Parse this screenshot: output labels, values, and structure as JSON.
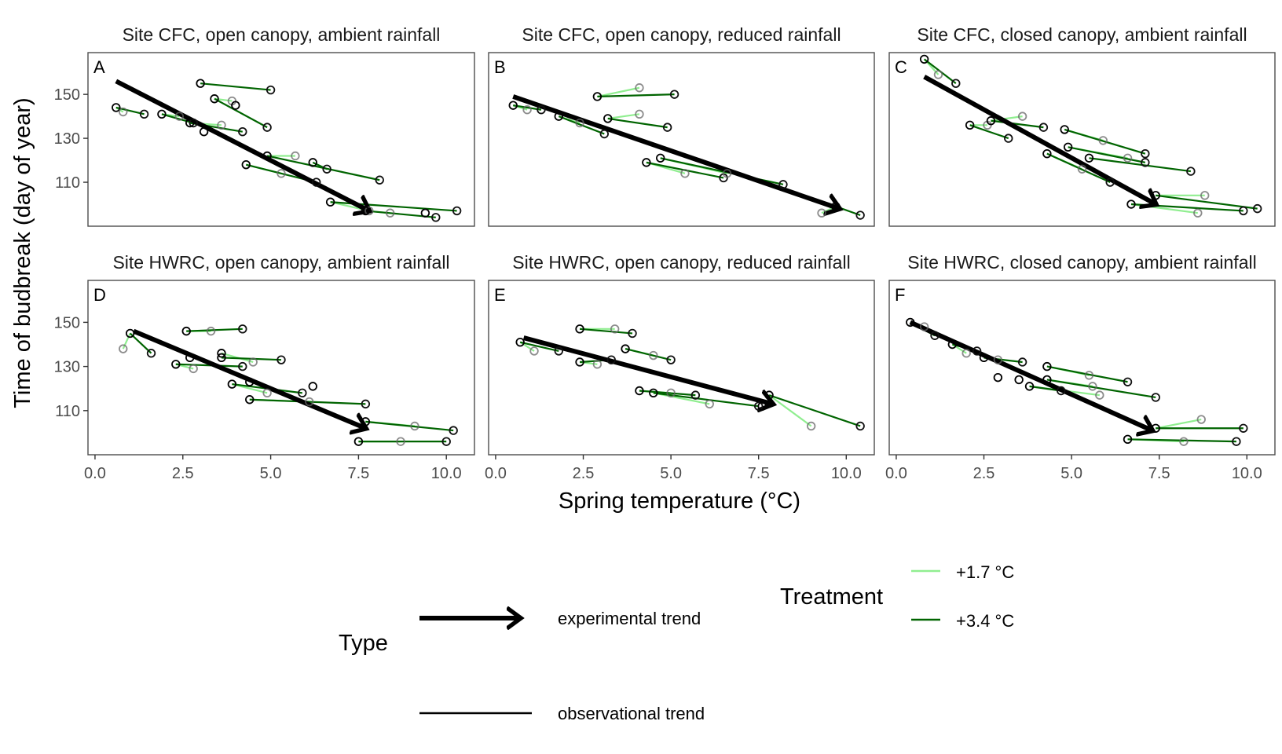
{
  "chart_data": {
    "type": "line",
    "xlabel": "Spring temperature (°C)",
    "ylabel": "Time of budbreak (day of year)",
    "xlim": [
      -0.2,
      10.8
    ],
    "ylim": [
      90,
      169
    ],
    "x_ticks": [
      0,
      2.5,
      5,
      7.5,
      10
    ],
    "x_tick_labels": [
      "0.0",
      "2.5",
      "5.0",
      "7.5",
      "10.0"
    ],
    "y_ticks": [
      110,
      130,
      150
    ],
    "y_tick_labels": [
      "110",
      "130",
      "150"
    ],
    "grid": false,
    "legend": {
      "type_title": "Type",
      "type_entries": [
        "experimental trend",
        "observational trend"
      ],
      "treatment_title": "Treatment",
      "treatment_entries": [
        {
          "label": "+1.7 °C",
          "color": "#90ee90"
        },
        {
          "label": "+3.4 °C",
          "color": "#006400"
        }
      ]
    },
    "colors": {
      "ambient": "#000000",
      "t17": "#90ee90",
      "t34": "#006400",
      "arrow": "#000000",
      "panel_border": "#4d4d4d"
    },
    "panels": [
      {
        "letter": "A",
        "title": "Site CFC, open canopy, ambient rainfall",
        "trend_arrow": {
          "from": [
            0.6,
            156
          ],
          "to": [
            7.8,
            97
          ]
        },
        "groups": [
          {
            "amb": [
              0.6,
              144
            ],
            "t17": [
              0.8,
              142
            ],
            "t34": [
              1.4,
              141
            ]
          },
          {
            "amb": [
              1.9,
              141
            ],
            "t17": [
              2.4,
              140
            ],
            "t34": [
              2.8,
              137
            ]
          },
          {
            "amb": [
              3.0,
              155
            ],
            "t17": null,
            "t34": [
              5.0,
              152
            ]
          },
          {
            "amb": [
              3.4,
              148
            ],
            "t17": [
              3.9,
              147
            ],
            "t34": [
              4.9,
              135
            ]
          },
          {
            "amb": [
              2.7,
              137
            ],
            "t17": [
              3.6,
              136
            ],
            "t34": [
              4.2,
              133
            ]
          },
          {
            "amb": [
              3.1,
              133
            ],
            "t17": null,
            "t34": null
          },
          {
            "amb": [
              4.0,
              145
            ],
            "t17": null,
            "t34": null
          },
          {
            "amb": [
              4.9,
              122
            ],
            "t17": [
              5.7,
              122
            ],
            "t34": [
              8.1,
              111
            ]
          },
          {
            "amb": [
              4.3,
              118
            ],
            "t17": [
              5.3,
              114
            ],
            "t34": [
              6.3,
              110
            ]
          },
          {
            "amb": [
              6.2,
              119
            ],
            "t17": null,
            "t34": [
              6.6,
              116
            ]
          },
          {
            "amb": [
              6.7,
              101
            ],
            "t17": [
              7.8,
              97
            ],
            "t34": [
              10.3,
              97
            ]
          },
          {
            "amb": [
              7.7,
              97
            ],
            "t17": [
              8.4,
              96
            ],
            "t34": [
              9.7,
              94
            ]
          },
          {
            "amb": [
              9.4,
              96
            ],
            "t17": null,
            "t34": null
          }
        ]
      },
      {
        "letter": "B",
        "title": "Site CFC, open canopy, reduced rainfall",
        "trend_arrow": {
          "from": [
            0.5,
            149
          ],
          "to": [
            9.8,
            98
          ]
        },
        "groups": [
          {
            "amb": [
              0.5,
              145
            ],
            "t17": [
              0.9,
              143
            ],
            "t34": [
              1.3,
              143
            ]
          },
          {
            "amb": [
              1.8,
              140
            ],
            "t17": [
              2.4,
              137
            ],
            "t34": [
              3.1,
              132
            ]
          },
          {
            "amb": [
              2.9,
              149
            ],
            "t17": [
              4.1,
              153
            ],
            "t34": [
              5.1,
              150
            ]
          },
          {
            "amb": [
              3.2,
              139
            ],
            "t17": [
              4.1,
              141
            ],
            "t34": [
              4.9,
              135
            ]
          },
          {
            "amb": [
              4.3,
              119
            ],
            "t17": [
              5.4,
              114
            ],
            "t34": [
              6.5,
              112
            ]
          },
          {
            "amb": [
              4.7,
              121
            ],
            "t17": [
              6.6,
              114
            ],
            "t34": [
              8.2,
              109
            ]
          },
          {
            "amb": [
              9.7,
              99
            ],
            "t17": [
              9.3,
              96
            ],
            "t34": [
              10.4,
              95
            ]
          }
        ]
      },
      {
        "letter": "C",
        "title": "Site CFC, closed canopy, ambient rainfall",
        "trend_arrow": {
          "from": [
            0.8,
            158
          ],
          "to": [
            7.4,
            100
          ]
        },
        "groups": [
          {
            "amb": [
              0.8,
              166
            ],
            "t17": [
              1.2,
              159
            ],
            "t34": [
              1.7,
              155
            ]
          },
          {
            "amb": [
              2.1,
              136
            ],
            "t17": [
              2.6,
              136
            ],
            "t34": [
              3.2,
              130
            ]
          },
          {
            "amb": [
              2.7,
              138
            ],
            "t17": [
              3.6,
              140
            ],
            "t34": [
              4.2,
              135
            ]
          },
          {
            "amb": [
              4.8,
              134
            ],
            "t17": [
              5.9,
              129
            ],
            "t34": [
              7.1,
              123
            ]
          },
          {
            "amb": [
              4.9,
              126
            ],
            "t17": [
              6.6,
              121
            ],
            "t34": [
              7.1,
              119
            ]
          },
          {
            "amb": [
              4.3,
              123
            ],
            "t17": [
              5.3,
              116
            ],
            "t34": [
              6.1,
              110
            ]
          },
          {
            "amb": [
              5.5,
              121
            ],
            "t17": null,
            "t34": [
              8.4,
              115
            ]
          },
          {
            "amb": [
              6.7,
              100
            ],
            "t17": [
              8.6,
              96
            ],
            "t34": [
              9.9,
              97
            ]
          },
          {
            "amb": [
              7.4,
              104
            ],
            "t17": [
              8.8,
              104
            ],
            "t34": [
              10.3,
              98
            ]
          }
        ]
      },
      {
        "letter": "D",
        "title": "Site HWRC, open canopy, ambient rainfall",
        "trend_arrow": {
          "from": [
            1.1,
            146
          ],
          "to": [
            7.7,
            102
          ]
        },
        "groups": [
          {
            "amb": [
              1.0,
              145
            ],
            "t17": [
              0.8,
              138
            ],
            "t34": [
              1.6,
              136
            ]
          },
          {
            "amb": [
              2.6,
              146
            ],
            "t17": [
              3.3,
              146
            ],
            "t34": [
              4.2,
              147
            ]
          },
          {
            "amb": [
              3.6,
              136
            ],
            "t17": [
              4.5,
              132
            ],
            "t34": null
          },
          {
            "amb": [
              3.6,
              134
            ],
            "t17": null,
            "t34": [
              5.3,
              133
            ]
          },
          {
            "amb": [
              2.3,
              131
            ],
            "t17": [
              2.8,
              129
            ],
            "t34": [
              4.2,
              130
            ]
          },
          {
            "amb": [
              2.7,
              134
            ],
            "t17": null,
            "t34": null
          },
          {
            "amb": [
              3.9,
              122
            ],
            "t17": [
              4.9,
              118
            ],
            "t34": [
              5.9,
              118
            ]
          },
          {
            "amb": [
              4.4,
              115
            ],
            "t17": [
              6.1,
              114
            ],
            "t34": [
              7.7,
              113
            ]
          },
          {
            "amb": [
              6.2,
              121
            ],
            "t17": null,
            "t34": null
          },
          {
            "amb": [
              4.4,
              123
            ],
            "t17": null,
            "t34": null
          },
          {
            "amb": [
              7.7,
              105
            ],
            "t17": [
              9.1,
              103
            ],
            "t34": [
              10.2,
              101
            ]
          },
          {
            "amb": [
              7.5,
              96
            ],
            "t17": [
              8.7,
              96
            ],
            "t34": [
              10.0,
              96
            ]
          }
        ]
      },
      {
        "letter": "E",
        "title": "Site HWRC, open canopy, reduced rainfall",
        "trend_arrow": {
          "from": [
            0.8,
            143
          ],
          "to": [
            7.9,
            113
          ]
        },
        "groups": [
          {
            "amb": [
              0.7,
              141
            ],
            "t17": [
              1.1,
              137
            ],
            "t34": [
              1.8,
              137
            ]
          },
          {
            "amb": [
              2.4,
              147
            ],
            "t17": [
              3.4,
              147
            ],
            "t34": [
              3.9,
              145
            ]
          },
          {
            "amb": [
              3.7,
              138
            ],
            "t17": [
              4.5,
              135
            ],
            "t34": [
              5.0,
              133
            ]
          },
          {
            "amb": [
              2.4,
              132
            ],
            "t17": [
              2.9,
              131
            ],
            "t34": [
              3.3,
              133
            ]
          },
          {
            "amb": [
              4.1,
              119
            ],
            "t17": [
              5.0,
              118
            ],
            "t34": [
              5.7,
              117
            ]
          },
          {
            "amb": [
              4.5,
              118
            ],
            "t17": [
              6.1,
              113
            ],
            "t34": [
              7.5,
              112
            ]
          },
          {
            "amb": [
              7.8,
              117
            ],
            "t17": [
              9.0,
              103
            ],
            "t34": [
              10.4,
              103
            ]
          },
          {
            "amb": [
              7.6,
              112
            ],
            "t17": null,
            "t34": null
          }
        ]
      },
      {
        "letter": "F",
        "title": "Site HWRC, closed canopy, ambient rainfall",
        "trend_arrow": {
          "from": [
            0.4,
            150
          ],
          "to": [
            7.3,
            101
          ]
        },
        "groups": [
          {
            "amb": [
              0.4,
              150
            ],
            "t17": [
              0.8,
              148
            ],
            "t34": [
              1.1,
              144
            ]
          },
          {
            "amb": [
              1.6,
              140
            ],
            "t17": [
              2.0,
              136
            ],
            "t34": [
              2.3,
              137
            ]
          },
          {
            "amb": [
              2.5,
              134
            ],
            "t17": [
              2.9,
              133
            ],
            "t34": [
              3.6,
              132
            ]
          },
          {
            "amb": [
              4.3,
              130
            ],
            "t17": [
              5.5,
              126
            ],
            "t34": [
              6.6,
              123
            ]
          },
          {
            "amb": [
              4.3,
              124
            ],
            "t17": [
              5.6,
              121
            ],
            "t34": [
              7.4,
              116
            ]
          },
          {
            "amb": [
              3.8,
              121
            ],
            "t17": [
              5.8,
              117
            ],
            "t34": [
              4.7,
              119
            ]
          },
          {
            "amb": [
              2.9,
              125
            ],
            "t17": null,
            "t34": null
          },
          {
            "amb": [
              3.5,
              124
            ],
            "t17": null,
            "t34": null
          },
          {
            "amb": [
              7.4,
              102
            ],
            "t17": [
              8.7,
              106
            ],
            "t34": [
              9.9,
              102
            ]
          },
          {
            "amb": [
              6.6,
              97
            ],
            "t17": [
              8.2,
              96
            ],
            "t34": [
              9.7,
              96
            ]
          }
        ]
      }
    ]
  }
}
